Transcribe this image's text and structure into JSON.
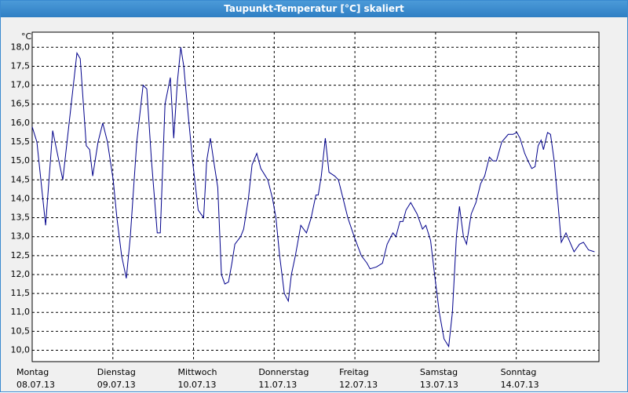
{
  "chart_data": {
    "type": "line",
    "title": "Taupunkt-Temperatur [°C] skaliert",
    "y_label": "°C",
    "xlim": [
      0,
      168.6
    ],
    "ylim": [
      9.7,
      18.4
    ],
    "grid": true,
    "yticks": [
      {
        "value": 10,
        "label": "10,0"
      },
      {
        "value": 10.5,
        "label": "10,5"
      },
      {
        "value": 11,
        "label": "11,0"
      },
      {
        "value": 11.5,
        "label": "11,5"
      },
      {
        "value": 12,
        "label": "12,0"
      },
      {
        "value": 12.5,
        "label": "12,5"
      },
      {
        "value": 13,
        "label": "13,0"
      },
      {
        "value": 13.5,
        "label": "13,5"
      },
      {
        "value": 14,
        "label": "14,0"
      },
      {
        "value": 14.5,
        "label": "14,5"
      },
      {
        "value": 15,
        "label": "15,0"
      },
      {
        "value": 15.5,
        "label": "15,5"
      },
      {
        "value": 16,
        "label": "16,0"
      },
      {
        "value": 16.5,
        "label": "16,5"
      },
      {
        "value": 17,
        "label": "17,0"
      },
      {
        "value": 17.5,
        "label": "17,5"
      },
      {
        "value": 18,
        "label": "18,0"
      }
    ],
    "xticks": [
      {
        "value": 0,
        "label": "Montag",
        "date": "08.07.13"
      },
      {
        "value": 24,
        "label": "Dienstag",
        "date": "09.07.13"
      },
      {
        "value": 48,
        "label": "Mittwoch",
        "date": "10.07.13"
      },
      {
        "value": 72,
        "label": "Donnerstag",
        "date": "11.07.13"
      },
      {
        "value": 96,
        "label": "Freitag",
        "date": "12.07.13"
      },
      {
        "value": 120,
        "label": "Samstag",
        "date": "13.07.13"
      },
      {
        "value": 144,
        "label": "Sonntag",
        "date": "14.07.13"
      }
    ],
    "x": [
      0,
      1.4,
      4.0,
      6.1,
      9.1,
      13.3,
      14.3,
      16.1,
      17.1,
      18.0,
      19.6,
      21.0,
      22.4,
      24.1,
      25.2,
      26.6,
      28.0,
      29.2,
      31.1,
      33.0,
      34.1,
      35.5,
      37.2,
      38.1,
      39.5,
      41.1,
      42.1,
      43.2,
      44.2,
      45.1,
      46.0,
      47.7,
      49.4,
      51.0,
      51.9,
      53.0,
      54.0,
      55.2,
      56.3,
      57.3,
      58.4,
      59.4,
      60.3,
      62.0,
      62.9,
      64.3,
      65.4,
      66.8,
      68.0,
      70.1,
      71.5,
      72.5,
      73.6,
      75.0,
      76.2,
      77.1,
      78.3,
      79.9,
      81.6,
      83.0,
      84.4,
      85.1,
      86.0,
      87.2,
      88.3,
      90.0,
      91.1,
      92.5,
      93.9,
      95.8,
      97.9,
      99.6,
      100.5,
      102.4,
      104.2,
      105.6,
      107.3,
      108.2,
      109.4,
      110.3,
      111.2,
      112.6,
      114.5,
      116.1,
      117.1,
      118.5,
      119.7,
      121.1,
      122.5,
      123.9,
      125.0,
      126.2,
      127.1,
      128.3,
      129.2,
      130.6,
      132.0,
      133.4,
      134.6,
      136.0,
      137.1,
      138.1,
      139.7,
      141.6,
      143.0,
      144.2,
      145.1,
      146.5,
      147.5,
      148.6,
      149.6,
      150.5,
      151.4,
      152.1,
      153.3,
      154.2,
      155.3,
      156.3,
      157.4,
      158.8,
      161.2,
      162.8,
      164.0,
      165.5,
      167.3
    ],
    "series": [
      {
        "color": "#00008b",
        "values": [
          15.9,
          15.5,
          13.3,
          15.8,
          14.5,
          17.85,
          17.7,
          15.4,
          15.3,
          14.6,
          15.5,
          16.0,
          15.5,
          14.5,
          13.5,
          12.5,
          11.9,
          13.0,
          15.5,
          17.0,
          16.9,
          15.0,
          13.1,
          13.1,
          16.5,
          17.2,
          15.6,
          17.1,
          18.0,
          17.5,
          16.6,
          15.0,
          13.7,
          13.5,
          15.0,
          15.6,
          15.0,
          14.3,
          12.0,
          11.75,
          11.8,
          12.3,
          12.8,
          13.0,
          13.2,
          14.0,
          14.9,
          15.2,
          14.8,
          14.5,
          14.0,
          13.5,
          12.5,
          11.5,
          11.3,
          12.0,
          12.5,
          13.3,
          13.1,
          13.5,
          14.1,
          14.1,
          14.6,
          15.6,
          14.7,
          14.6,
          14.5,
          14.0,
          13.5,
          13.0,
          12.5,
          12.3,
          12.15,
          12.2,
          12.3,
          12.8,
          13.1,
          13.0,
          13.4,
          13.4,
          13.7,
          13.9,
          13.6,
          13.2,
          13.3,
          12.9,
          12.0,
          11.0,
          10.3,
          10.1,
          11.0,
          13.0,
          13.8,
          13.0,
          12.8,
          13.6,
          13.9,
          14.4,
          14.6,
          15.1,
          15.0,
          15.0,
          15.5,
          15.7,
          15.7,
          15.75,
          15.6,
          15.2,
          15.0,
          14.8,
          14.85,
          15.4,
          15.55,
          15.3,
          15.75,
          15.7,
          15.0,
          14.0,
          12.85,
          13.1,
          12.6,
          12.8,
          12.85,
          12.65,
          12.6
        ]
      }
    ]
  }
}
